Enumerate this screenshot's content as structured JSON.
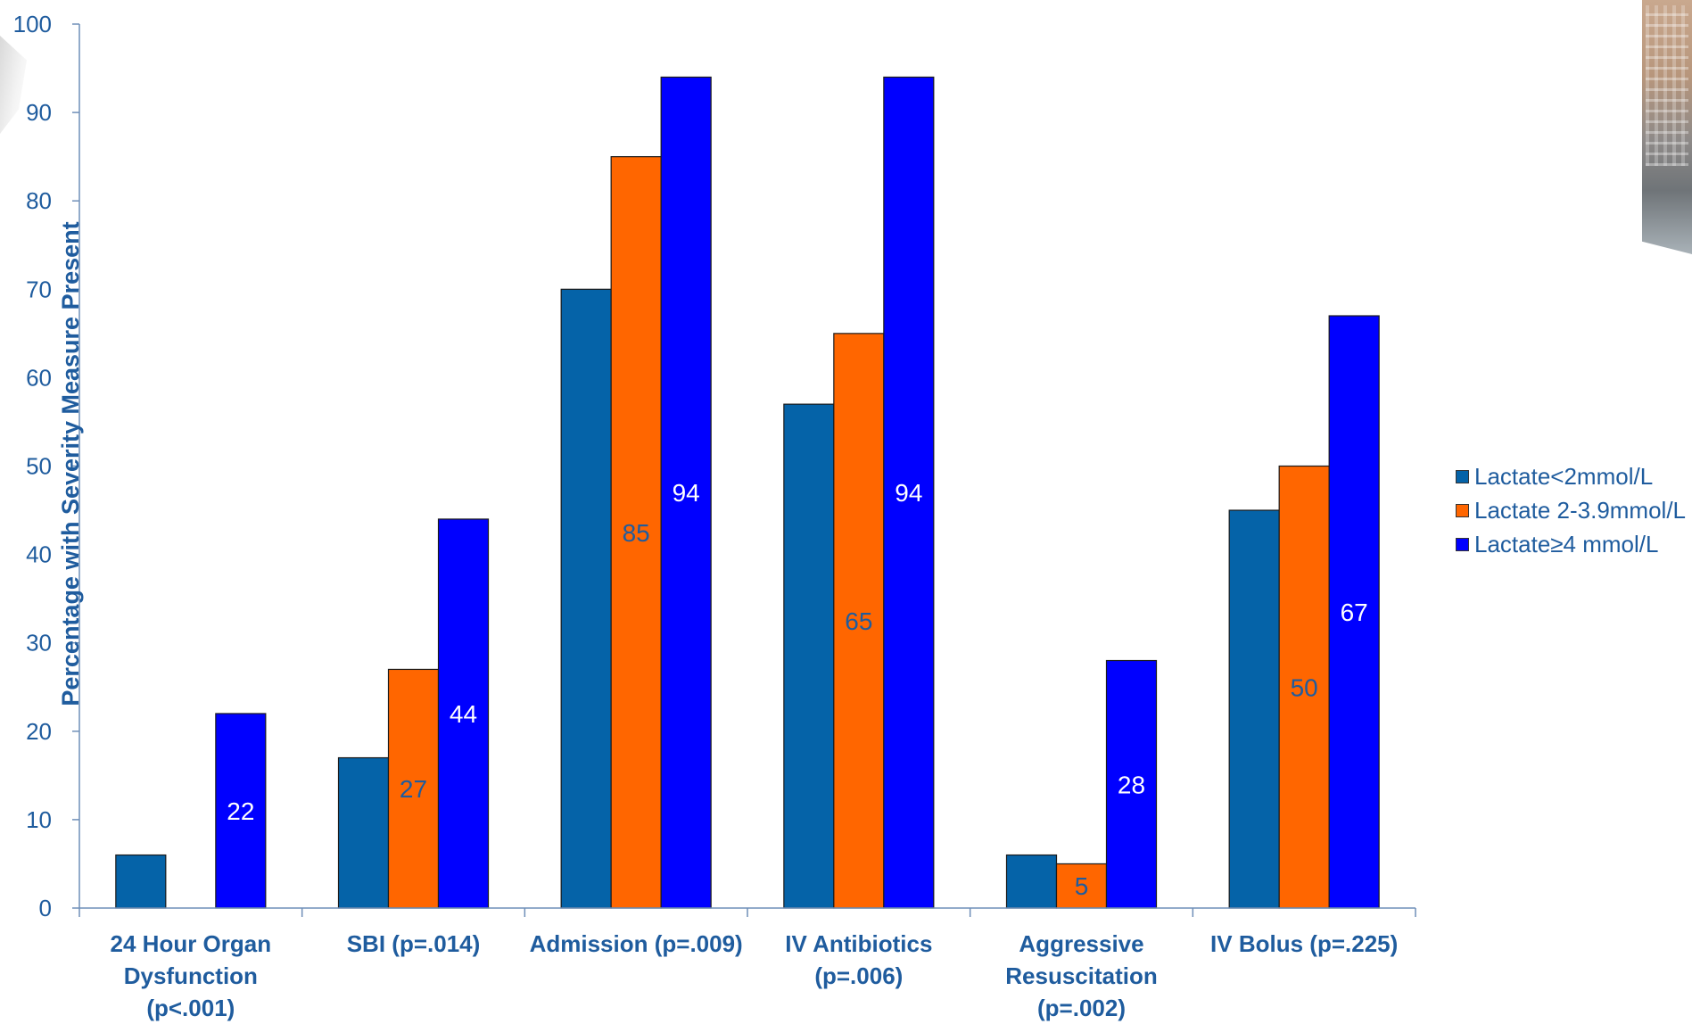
{
  "chart_data": {
    "type": "bar",
    "title": "",
    "xlabel": "",
    "ylabel": "Percentage with Severity Measure Present",
    "ylim": [
      0,
      100
    ],
    "yticks": [
      0,
      10,
      20,
      30,
      40,
      50,
      60,
      70,
      80,
      90,
      100
    ],
    "grid": false,
    "legend_position": "right",
    "categories": [
      [
        "24 Hour Organ",
        "Dysfunction",
        "(p<.001)"
      ],
      [
        "SBI (p=.014)"
      ],
      [
        "Admission (p=.009)"
      ],
      [
        "IV Antibiotics",
        "(p=.006)"
      ],
      [
        "Aggressive",
        "Resuscitation",
        "(p=.002)"
      ],
      [
        "IV Bolus (p=.225)"
      ]
    ],
    "series": [
      {
        "name": "Lactate<2mmol/L",
        "color": "#0563a8",
        "values": [
          6,
          17,
          70,
          57,
          6,
          45
        ],
        "labels": [
          "",
          "",
          "",
          "",
          "",
          ""
        ]
      },
      {
        "name": "Lactate 2-3.9mmol/L",
        "color": "#ff6600",
        "values": [
          0,
          27,
          85,
          65,
          5,
          50
        ],
        "labels": [
          "",
          "27",
          "85",
          "65",
          "5",
          "50"
        ]
      },
      {
        "name": "Lactate≥4 mmol/L",
        "color": "#0000ff",
        "values": [
          22,
          44,
          94,
          94,
          28,
          67
        ],
        "labels": [
          "22",
          "44",
          "94",
          "94",
          "28",
          "67"
        ]
      }
    ]
  }
}
